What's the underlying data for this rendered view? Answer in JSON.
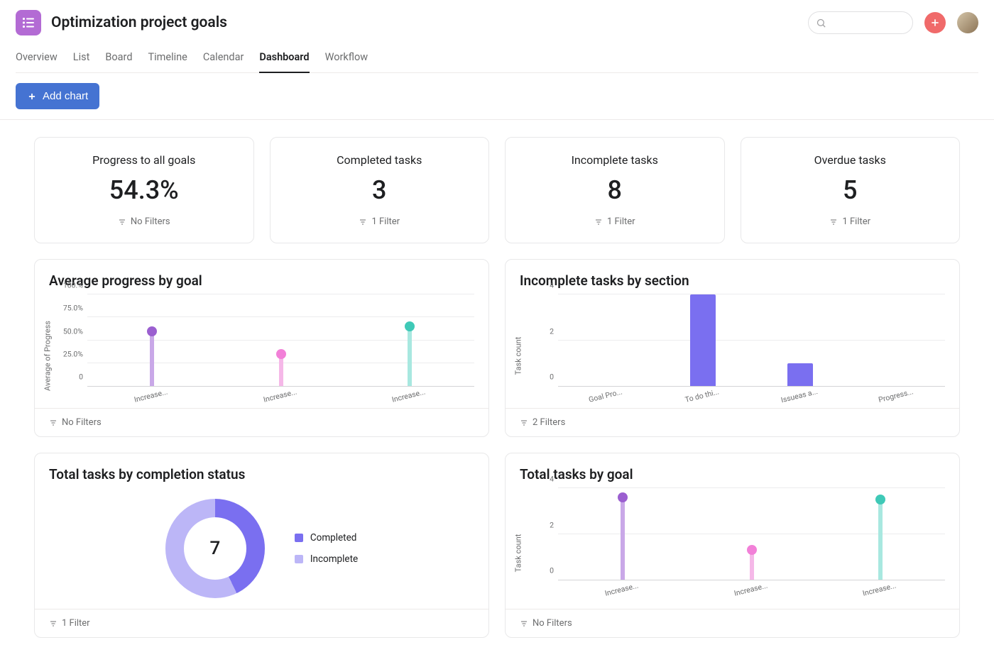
{
  "project": {
    "title": "Optimization project goals",
    "icon_bg": "#b36bd4",
    "icon_fg": "#ffffff"
  },
  "header_actions": {
    "plus_bg": "#f06a6a"
  },
  "tabs": [
    {
      "label": "Overview",
      "active": false
    },
    {
      "label": "List",
      "active": false
    },
    {
      "label": "Board",
      "active": false
    },
    {
      "label": "Timeline",
      "active": false
    },
    {
      "label": "Calendar",
      "active": false
    },
    {
      "label": "Dashboard",
      "active": true
    },
    {
      "label": "Workflow",
      "active": false
    }
  ],
  "toolbar": {
    "add_chart_label": "Add chart",
    "add_chart_bg": "#4573d2"
  },
  "stat_cards": [
    {
      "title": "Progress to all goals",
      "value": "54.3%",
      "filter": "No Filters"
    },
    {
      "title": "Completed tasks",
      "value": "3",
      "filter": "1 Filter"
    },
    {
      "title": "Incomplete tasks",
      "value": "8",
      "filter": "1 Filter"
    },
    {
      "title": "Overdue tasks",
      "value": "5",
      "filter": "1 Filter"
    }
  ],
  "avg_progress_chart": {
    "title": "Average progress by goal",
    "type": "lollipop",
    "y_axis_label": "Average of Progress",
    "y_ticks": [
      "0",
      "25.0%",
      "50.0%",
      "75.0%",
      "100.%"
    ],
    "ymax": 100,
    "categories": [
      "Increase...",
      "Increase...",
      "Increase..."
    ],
    "values": [
      60,
      35,
      65
    ],
    "stem_colors": [
      "#c9a8e8",
      "#f5b8e8",
      "#a8e8e0"
    ],
    "dot_colors": [
      "#9b5fd0",
      "#f280d8",
      "#3fc9b7"
    ],
    "grid_color": "#ececee",
    "background_color": "#ffffff",
    "filter": "No Filters"
  },
  "incomplete_section_chart": {
    "title": "Incomplete tasks by section",
    "type": "bar",
    "y_axis_label": "Task count",
    "y_ticks": [
      "0",
      "2",
      "4"
    ],
    "ymax": 4,
    "categories": [
      "Goal Pro...",
      "To do thi...",
      "Issueas a...",
      "Progress..."
    ],
    "values": [
      0,
      4,
      1,
      0
    ],
    "bar_color": "#7a6ff0",
    "grid_color": "#ececee",
    "filter": "2 Filters"
  },
  "completion_donut": {
    "title": "Total tasks by completion status",
    "type": "donut",
    "center_value": "7",
    "slices": [
      {
        "label": "Completed",
        "value": 3,
        "color": "#7a6ff0"
      },
      {
        "label": "Incomplete",
        "value": 4,
        "color": "#bcb6f7"
      }
    ],
    "ring_bg": "#bcb6f7",
    "filter": "1 Filter"
  },
  "tasks_by_goal_chart": {
    "title": "Total tasks by goal",
    "type": "lollipop",
    "y_axis_label": "Task count",
    "y_ticks": [
      "0",
      "2",
      "4"
    ],
    "ymax": 4,
    "categories": [
      "Increase...",
      "Increase...",
      "Increase..."
    ],
    "values": [
      3.6,
      1.3,
      3.5
    ],
    "stem_colors": [
      "#c9a8e8",
      "#f5b8e8",
      "#a8e8e0"
    ],
    "dot_colors": [
      "#9b5fd0",
      "#f280d8",
      "#3fc9b7"
    ],
    "grid_color": "#ececee",
    "filter": "No Filters"
  }
}
